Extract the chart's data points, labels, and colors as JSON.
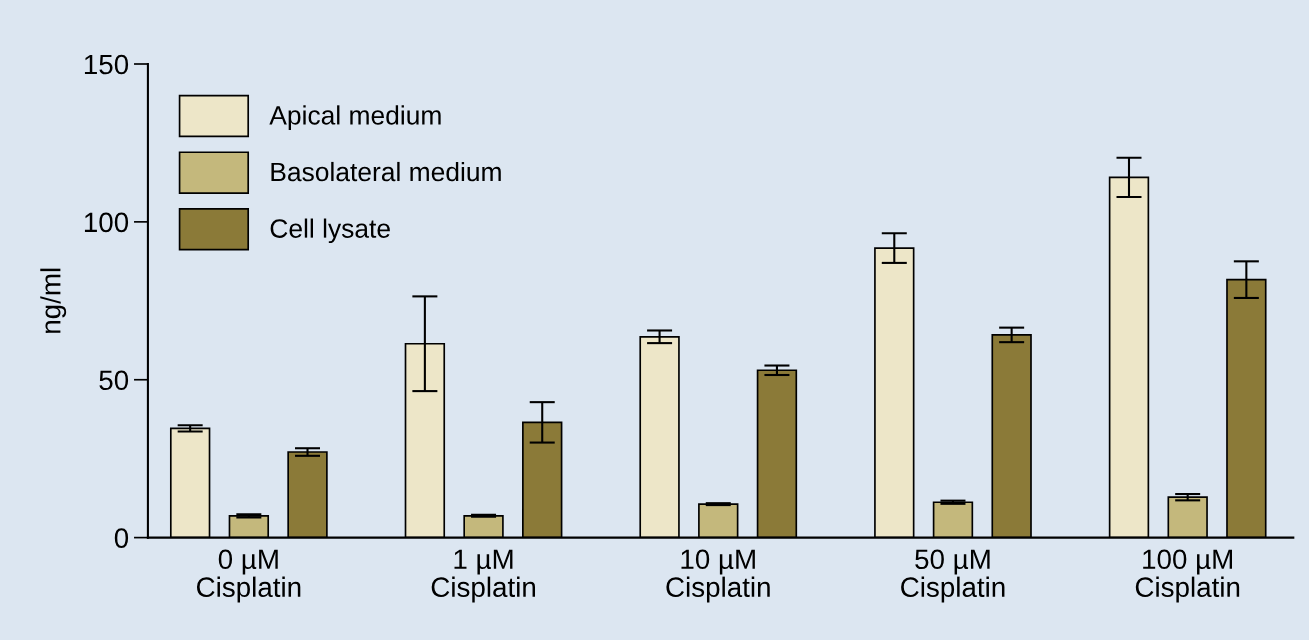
{
  "chart_data": {
    "type": "bar",
    "ylabel": "ng/ml",
    "categories": [
      "0 µM\nCisplatin",
      "1 µM\nCisplatin",
      "10 µM\nCisplatin",
      "50 µM\nCisplatin",
      "100 µM\nCisplatin"
    ],
    "series": [
      {
        "name": "Apical medium",
        "color": "#ede6c8",
        "values": [
          34.6,
          61.4,
          63.6,
          91.7,
          114.1
        ],
        "errors": [
          1,
          15,
          2,
          4.7,
          6.2
        ]
      },
      {
        "name": "Basolateral medium",
        "color": "#c4b87c",
        "values": [
          6.9,
          6.9,
          10.6,
          11.2,
          12.8
        ],
        "errors": [
          0.5,
          0.3,
          0.3,
          0.5,
          1
        ]
      },
      {
        "name": "Cell lysate",
        "color": "#8b7a38",
        "values": [
          27.1,
          36.5,
          53,
          64.2,
          81.7
        ],
        "errors": [
          1.2,
          6.4,
          1.5,
          2.3,
          5.8
        ]
      }
    ],
    "ylim": [
      0,
      150
    ],
    "yticks": [
      0,
      50,
      100,
      150
    ],
    "grid": false,
    "legend": "top left"
  }
}
